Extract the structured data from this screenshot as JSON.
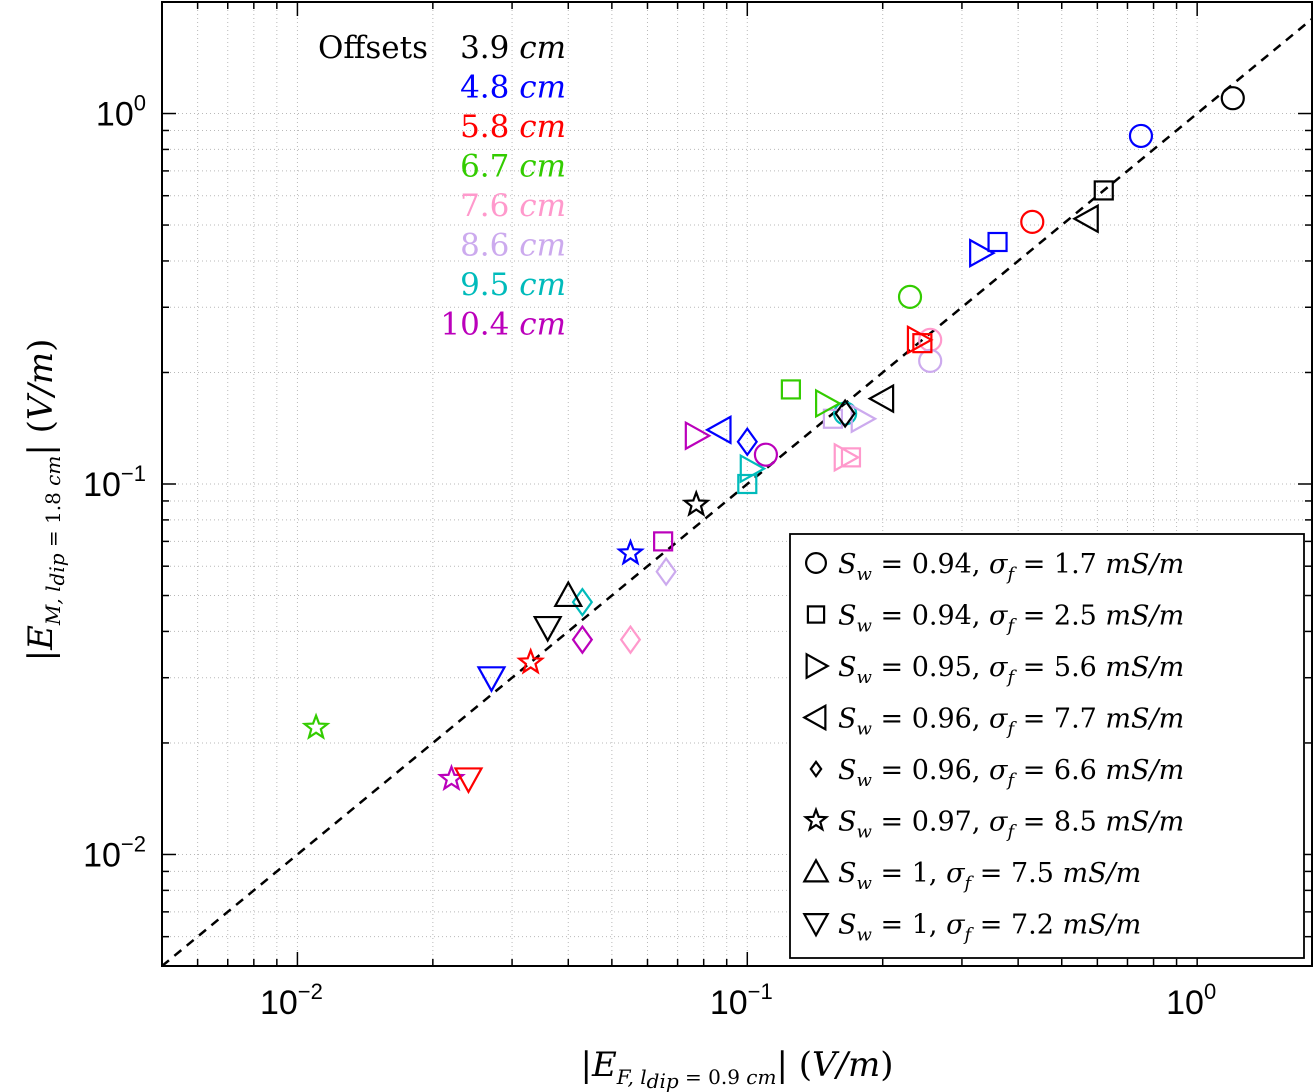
{
  "chart_data": {
    "type": "scatter",
    "xscale": "log",
    "yscale": "log",
    "xlim": [
      0.005,
      1.8
    ],
    "ylim": [
      0.005,
      2.0
    ],
    "grid": true,
    "xlabel": "|E_F, l_dip = 0.9 cm| (V/m)",
    "ylabel": "|E_M, l_dip = 1.8 cm| (V/m)",
    "xticks": [
      {
        "base": "10",
        "exp": "−2",
        "value": 0.01
      },
      {
        "base": "10",
        "exp": "−1",
        "value": 0.1
      },
      {
        "base": "10",
        "exp": "0",
        "value": 1
      }
    ],
    "yticks": [
      {
        "base": "10",
        "exp": "−2",
        "value": 0.01
      },
      {
        "base": "10",
        "exp": "−1",
        "value": 0.1
      },
      {
        "base": "10",
        "exp": "0",
        "value": 1
      }
    ],
    "reference_line": {
      "style": "dashed",
      "color": "#000000",
      "equation": "y = x"
    },
    "offsets_title": "Offsets",
    "offsets": [
      {
        "label": "3.9",
        "unit": "cm",
        "color": "#000000"
      },
      {
        "label": "4.8",
        "unit": "cm",
        "color": "#0000ff"
      },
      {
        "label": "5.8",
        "unit": "cm",
        "color": "#ff0000"
      },
      {
        "label": "6.7",
        "unit": "cm",
        "color": "#33cc00"
      },
      {
        "label": "7.6",
        "unit": "cm",
        "color": "#ff99cc"
      },
      {
        "label": "8.6",
        "unit": "cm",
        "color": "#ccaaee"
      },
      {
        "label": "9.5",
        "unit": "cm",
        "color": "#00bbbb"
      },
      {
        "label": "10.4",
        "unit": "cm",
        "color": "#bb00bb"
      }
    ],
    "legend_position": "bottom-right",
    "series": [
      {
        "marker": "circle",
        "sw": "0.94",
        "sigma": "1.7",
        "unit": "mS/m",
        "points": [
          {
            "x": 1.2,
            "y": 1.1,
            "offset": "3.9"
          },
          {
            "x": 0.75,
            "y": 0.87,
            "offset": "4.8"
          },
          {
            "x": 0.43,
            "y": 0.51,
            "offset": "5.8"
          },
          {
            "x": 0.23,
            "y": 0.32,
            "offset": "6.7"
          },
          {
            "x": 0.255,
            "y": 0.245,
            "offset": "7.6"
          },
          {
            "x": 0.255,
            "y": 0.215,
            "offset": "8.6"
          },
          {
            "x": 0.165,
            "y": 0.155,
            "offset": "9.5"
          },
          {
            "x": 0.11,
            "y": 0.12,
            "offset": "10.4"
          }
        ]
      },
      {
        "marker": "square",
        "sw": "0.94",
        "sigma": "2.5",
        "unit": "mS/m",
        "points": [
          {
            "x": 0.62,
            "y": 0.62,
            "offset": "3.9"
          },
          {
            "x": 0.36,
            "y": 0.45,
            "offset": "4.8"
          },
          {
            "x": 0.245,
            "y": 0.24,
            "offset": "5.8"
          },
          {
            "x": 0.125,
            "y": 0.18,
            "offset": "6.7"
          },
          {
            "x": 0.17,
            "y": 0.118,
            "offset": "7.6"
          },
          {
            "x": 0.155,
            "y": 0.15,
            "offset": "8.6"
          },
          {
            "x": 0.1,
            "y": 0.1,
            "offset": "9.5"
          },
          {
            "x": 0.065,
            "y": 0.07,
            "offset": "10.4"
          }
        ]
      },
      {
        "marker": "triangle-right",
        "sw": "0.95",
        "sigma": "5.6",
        "unit": "mS/m",
        "points": [
          {
            "x": 0.33,
            "y": 0.42,
            "offset": "4.8"
          },
          {
            "x": 0.24,
            "y": 0.245,
            "offset": "5.8"
          },
          {
            "x": 0.15,
            "y": 0.165,
            "offset": "6.7"
          },
          {
            "x": 0.165,
            "y": 0.118,
            "offset": "7.6"
          },
          {
            "x": 0.18,
            "y": 0.15,
            "offset": "8.6"
          },
          {
            "x": 0.102,
            "y": 0.11,
            "offset": "9.5"
          },
          {
            "x": 0.077,
            "y": 0.135,
            "offset": "10.4"
          }
        ]
      },
      {
        "marker": "triangle-left",
        "sw": "0.96",
        "sigma": "7.7",
        "unit": "mS/m",
        "points": [
          {
            "x": 0.57,
            "y": 0.52,
            "offset": "3.9"
          },
          {
            "x": 0.2,
            "y": 0.17,
            "offset": "3.9"
          },
          {
            "x": 0.087,
            "y": 0.14,
            "offset": "4.8"
          }
        ]
      },
      {
        "marker": "diamond",
        "sw": "0.96",
        "sigma": "6.6",
        "unit": "mS/m",
        "points": [
          {
            "x": 0.165,
            "y": 0.155,
            "offset": "3.9"
          },
          {
            "x": 0.1,
            "y": 0.13,
            "offset": "4.8"
          },
          {
            "x": 0.055,
            "y": 0.038,
            "offset": "7.6"
          },
          {
            "x": 0.066,
            "y": 0.058,
            "offset": "8.6"
          },
          {
            "x": 0.043,
            "y": 0.048,
            "offset": "9.5"
          },
          {
            "x": 0.043,
            "y": 0.038,
            "offset": "10.4"
          }
        ]
      },
      {
        "marker": "star",
        "sw": "0.97",
        "sigma": "8.5",
        "unit": "mS/m",
        "points": [
          {
            "x": 0.077,
            "y": 0.088,
            "offset": "3.9"
          },
          {
            "x": 0.055,
            "y": 0.065,
            "offset": "4.8"
          },
          {
            "x": 0.033,
            "y": 0.033,
            "offset": "5.8"
          },
          {
            "x": 0.011,
            "y": 0.022,
            "offset": "6.7"
          },
          {
            "x": 0.022,
            "y": 0.016,
            "offset": "10.4"
          }
        ]
      },
      {
        "marker": "triangle-up",
        "sw": "1",
        "sigma": "7.5",
        "unit": "mS/m",
        "points": [
          {
            "x": 0.04,
            "y": 0.05,
            "offset": "3.9"
          }
        ]
      },
      {
        "marker": "triangle-down",
        "sw": "1",
        "sigma": "7.2",
        "unit": "mS/m",
        "points": [
          {
            "x": 0.036,
            "y": 0.041,
            "offset": "3.9"
          },
          {
            "x": 0.027,
            "y": 0.03,
            "offset": "4.8"
          },
          {
            "x": 0.024,
            "y": 0.016,
            "offset": "5.8"
          }
        ]
      }
    ]
  }
}
